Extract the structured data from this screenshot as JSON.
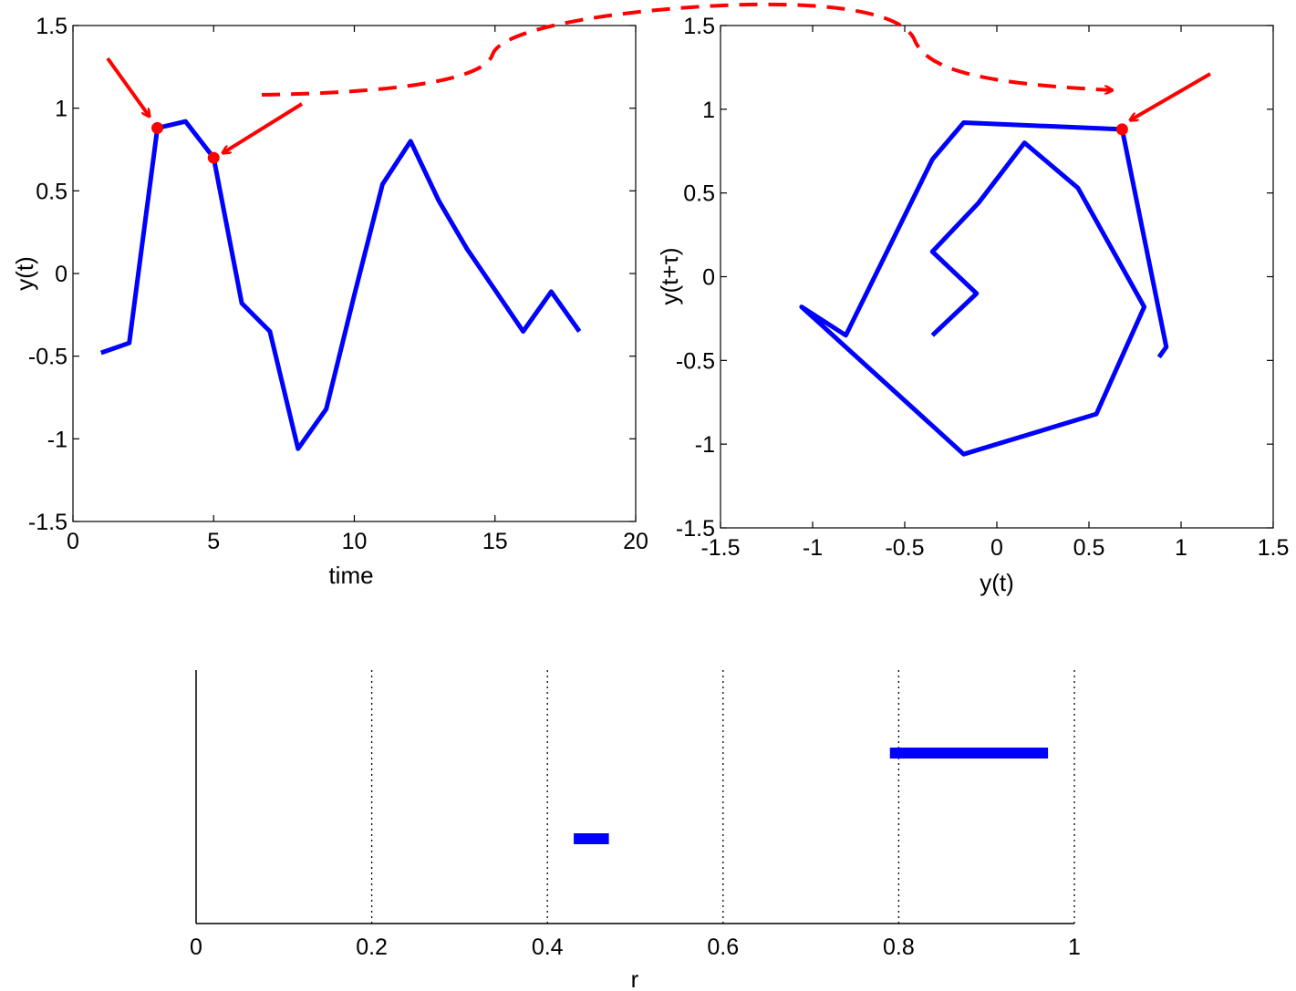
{
  "chart_data": [
    {
      "id": "timeseries",
      "type": "line",
      "xlabel": "time",
      "ylabel": "y(t)",
      "xlim": [
        0,
        20
      ],
      "ylim": [
        -1.5,
        1.5
      ],
      "xticks": [
        0,
        5,
        10,
        15,
        20
      ],
      "yticks": [
        -1.5,
        -1,
        -0.5,
        0,
        0.5,
        1,
        1.5
      ],
      "grid": false,
      "series": [
        {
          "color": "#0000ff",
          "x": [
            1,
            2,
            3,
            4,
            5,
            6,
            7,
            8,
            9,
            10,
            11,
            12,
            13,
            14,
            15,
            16,
            17,
            18
          ],
          "y": [
            -0.48,
            -0.42,
            0.88,
            0.92,
            0.7,
            -0.18,
            -0.35,
            -1.06,
            -0.82,
            -0.13,
            0.54,
            0.8,
            0.44,
            0.15,
            -0.1,
            -0.35,
            -0.11,
            -0.35
          ]
        }
      ],
      "highlight_points": [
        {
          "x": 3,
          "y": 0.88
        },
        {
          "x": 5,
          "y": 0.7
        }
      ],
      "highlight_color": "#ff0000"
    },
    {
      "id": "phase",
      "type": "line",
      "xlabel": "y(t)",
      "ylabel": "y(t+τ)",
      "xlim": [
        -1.5,
        1.5
      ],
      "ylim": [
        -1.5,
        1.5
      ],
      "xticks": [
        -1.5,
        -1,
        -0.5,
        0,
        0.5,
        1,
        1.5
      ],
      "yticks": [
        -1.5,
        -1,
        -0.5,
        0,
        0.5,
        1,
        1.5
      ],
      "grid": false,
      "series": [
        {
          "color": "#0000ff",
          "x": [
            0.88,
            0.92,
            0.68,
            -0.18,
            -0.35,
            -0.82,
            -1.06,
            -0.18,
            0.54,
            0.8,
            0.44,
            0.15,
            -0.1,
            -0.35,
            -0.11,
            -0.35
          ],
          "y": [
            -0.48,
            -0.42,
            0.88,
            0.92,
            0.7,
            -0.35,
            -0.18,
            -1.06,
            -0.82,
            -0.18,
            0.53,
            0.8,
            0.44,
            0.15,
            -0.1,
            -0.35
          ]
        }
      ],
      "highlight_points": [
        {
          "x": 0.68,
          "y": 0.88
        }
      ],
      "highlight_color": "#ff0000"
    },
    {
      "id": "recurrence",
      "type": "bar",
      "xlabel": "r",
      "xlim": [
        0,
        1
      ],
      "xticks": [
        0,
        0.2,
        0.4,
        0.6,
        0.8,
        1
      ],
      "xtick_labels": [
        "0",
        "0.2",
        "0.4",
        "0.6",
        "0.8",
        "1"
      ],
      "grid": "dotted vertical",
      "intervals": [
        {
          "start": 0.43,
          "end": 0.47,
          "level": 1
        },
        {
          "start": 0.79,
          "end": 0.97,
          "level": 2
        }
      ],
      "color": "#0000ff"
    }
  ]
}
